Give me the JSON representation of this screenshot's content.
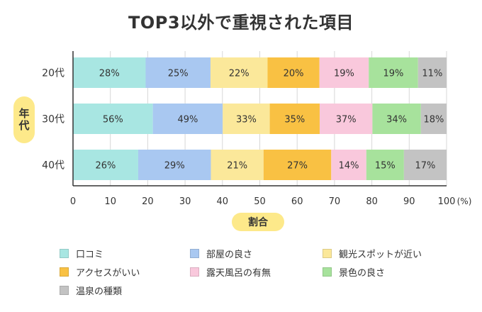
{
  "chart_data": {
    "type": "bar",
    "orientation": "horizontal",
    "stacked": "normalized-100",
    "title": "TOP3以外で重視された項目",
    "ylabel": "年代",
    "xlabel": "割合",
    "x_unit": "(%)",
    "xlim": [
      0,
      100
    ],
    "x_ticks": [
      "0",
      "10",
      "20",
      "30",
      "40",
      "50",
      "60",
      "70",
      "80",
      "90",
      "100"
    ],
    "categories": [
      "20代",
      "30代",
      "40代"
    ],
    "value_suffix": "%",
    "series": [
      {
        "name": "口コミ",
        "color": "#a8e6e2",
        "values": [
          28,
          56,
          26
        ]
      },
      {
        "name": "部屋の良さ",
        "color": "#a9c8f1",
        "values": [
          25,
          49,
          29
        ]
      },
      {
        "name": "観光スポットが近い",
        "color": "#fbe89a",
        "values": [
          22,
          33,
          21
        ]
      },
      {
        "name": "アクセスがいい",
        "color": "#f9c143",
        "values": [
          20,
          35,
          27
        ]
      },
      {
        "name": "露天風呂の有無",
        "color": "#f9c8dc",
        "values": [
          19,
          37,
          14
        ]
      },
      {
        "name": "景色の良さ",
        "color": "#a7e29c",
        "values": [
          19,
          34,
          15
        ]
      },
      {
        "name": "温泉の種類",
        "color": "#c3c3c3",
        "values": [
          11,
          18,
          17
        ]
      }
    ],
    "grid": "vertical",
    "legend": "bottom"
  }
}
